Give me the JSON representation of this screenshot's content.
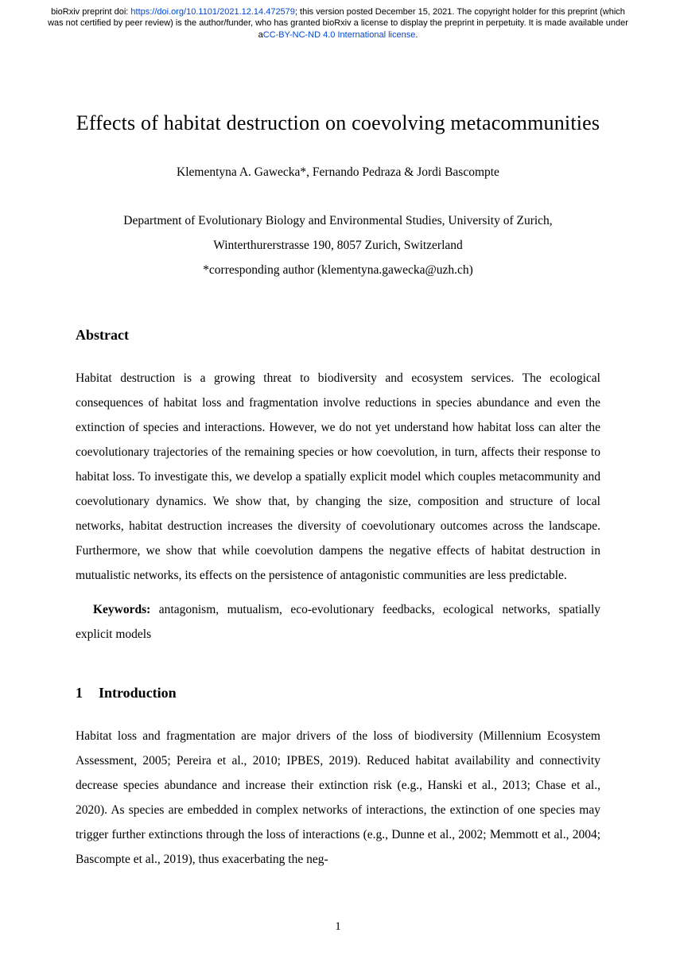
{
  "preprint": {
    "prefix": "bioRxiv preprint doi: ",
    "doi_url": "https://doi.org/10.1101/2021.12.14.472579",
    "middle": "; this version posted December 15, 2021. The copyright holder for this preprint (which was not certified by peer review) is the author/funder, who has granted bioRxiv a license to display the preprint in perpetuity. It is made available under a",
    "license_text": "CC-BY-NC-ND 4.0 International license",
    "suffix": "."
  },
  "title": "Effects of habitat destruction on coevolving metacommunities",
  "authors": "Klementyna A. Gawecka*, Fernando Pedraza & Jordi Bascompte",
  "affiliation": {
    "line1": "Department of Evolutionary Biology and Environmental Studies, University of Zurich,",
    "line2": "Winterthurerstrasse 190, 8057 Zurich, Switzerland",
    "line3": "*corresponding author (klementyna.gawecka@uzh.ch)"
  },
  "abstract": {
    "heading": "Abstract",
    "text": "Habitat destruction is a growing threat to biodiversity and ecosystem services. The ecological consequences of habitat loss and fragmentation involve reductions in species abundance and even the extinction of species and interactions. However, we do not yet understand how habitat loss can alter the coevolutionary trajectories of the remaining species or how coevolution, in turn, affects their response to habitat loss. To investigate this, we develop a spatially explicit model which couples metacommunity and coevolutionary dynamics. We show that, by changing the size, composition and structure of local networks, habitat destruction increases the diversity of coevolutionary outcomes across the landscape. Furthermore, we show that while coevolution dampens the negative effects of habitat destruction in mutualistic networks, its effects on the persistence of antagonistic communities are less predictable."
  },
  "keywords": {
    "label": "Keywords:",
    "text": " antagonism, mutualism, eco-evolutionary feedbacks, ecological networks, spatially explicit models"
  },
  "introduction": {
    "number": "1",
    "heading": "Introduction",
    "text": "Habitat loss and fragmentation are major drivers of the loss of biodiversity (Millennium Ecosystem Assessment, 2005; Pereira et al., 2010; IPBES, 2019). Reduced habitat availability and connectivity decrease species abundance and increase their extinction risk (e.g., Hanski et al., 2013; Chase et al., 2020). As species are embedded in complex networks of interactions, the extinction of one species may trigger further extinctions through the loss of interactions (e.g., Dunne et al., 2002; Memmott et al., 2004; Bascompte et al., 2019), thus exacerbating the neg-"
  },
  "page_number": "1"
}
